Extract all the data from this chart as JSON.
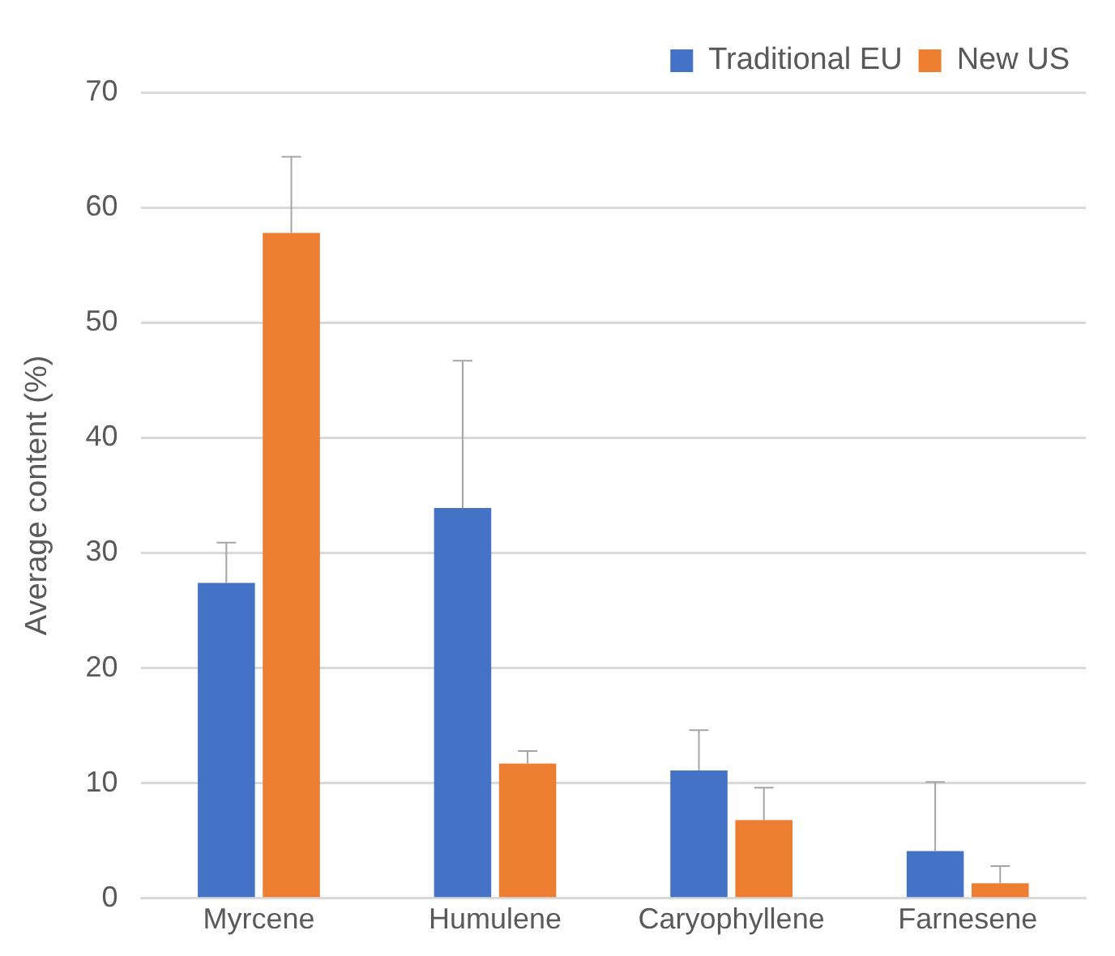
{
  "chart_data": {
    "type": "bar",
    "ylabel": "Average content (%)",
    "categories": [
      "Myrcene",
      "Humulene",
      "Caryophyllene",
      "Farnesene"
    ],
    "series": [
      {
        "name": "Traditional EU",
        "color": "#4472c4",
        "values": [
          27.4,
          33.9,
          11.1,
          4.1
        ],
        "errors": [
          [
            27.4,
            30.9
          ],
          [
            33.9,
            46.7
          ],
          [
            11.1,
            14.6
          ],
          [
            4.1,
            10.1
          ]
        ]
      },
      {
        "name": "New US",
        "color": "#ed7d31",
        "values": [
          57.8,
          11.7,
          6.8,
          1.3
        ],
        "errors": [
          [
            57.8,
            64.4
          ],
          [
            11.7,
            12.8
          ],
          [
            6.8,
            9.6
          ],
          [
            1.3,
            2.8
          ]
        ]
      }
    ],
    "ylim": [
      0,
      70
    ],
    "yticks": [
      0,
      10,
      20,
      30,
      40,
      50,
      60,
      70
    ],
    "grid": "y",
    "legend": "top right"
  }
}
